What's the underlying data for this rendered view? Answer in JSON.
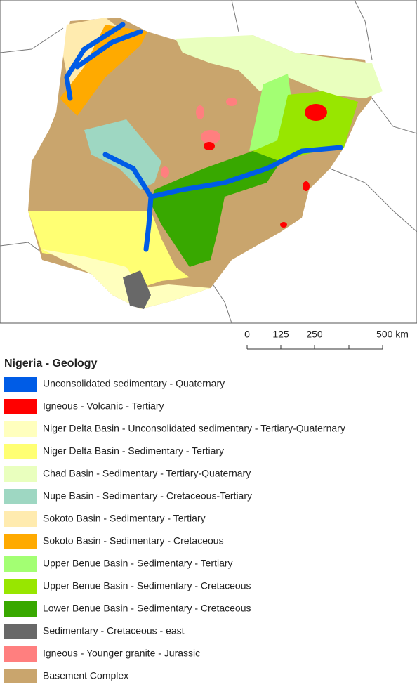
{
  "scale_bar": {
    "labels": [
      "0",
      "125",
      "250",
      "500 km"
    ]
  },
  "legend": {
    "title": "Nigeria - Geology",
    "items": [
      {
        "label": "Unconsolidated sedimentary - Quaternary",
        "color": "#005ce6"
      },
      {
        "label": "Igneous - Volcanic - Tertiary",
        "color": "#ff0000"
      },
      {
        "label": "Niger Delta Basin - Unconsolidated sedimentary - Tertiary-Quaternary",
        "color": "#ffffbe"
      },
      {
        "label": "Niger Delta Basin - Sedimentary - Tertiary",
        "color": "#ffff73"
      },
      {
        "label": "Chad Basin - Sedimentary - Tertiary-Quaternary",
        "color": "#e9ffbe"
      },
      {
        "label": "Nupe Basin - Sedimentary - Cretaceous-Tertiary",
        "color": "#9ed7c2"
      },
      {
        "label": "Sokoto Basin - Sedimentary - Tertiary",
        "color": "#ffebaf"
      },
      {
        "label": "Sokoto Basin - Sedimentary - Cretaceous",
        "color": "#ffaa00"
      },
      {
        "label": "Upper Benue Basin - Sedimentary - Tertiary",
        "color": "#a3ff73"
      },
      {
        "label": "Upper Benue Basin - Sedimentary - Cretaceous",
        "color": "#98e600"
      },
      {
        "label": "Lower Benue Basin - Sedimentary - Cretaceous",
        "color": "#38a800"
      },
      {
        "label": "Sedimentary - Cretaceous - east",
        "color": "#686868"
      },
      {
        "label": "Igneous - Younger granite - Jurassic",
        "color": "#ff7f7f"
      },
      {
        "label": "Basement Complex",
        "color": "#c9a56d"
      }
    ]
  }
}
